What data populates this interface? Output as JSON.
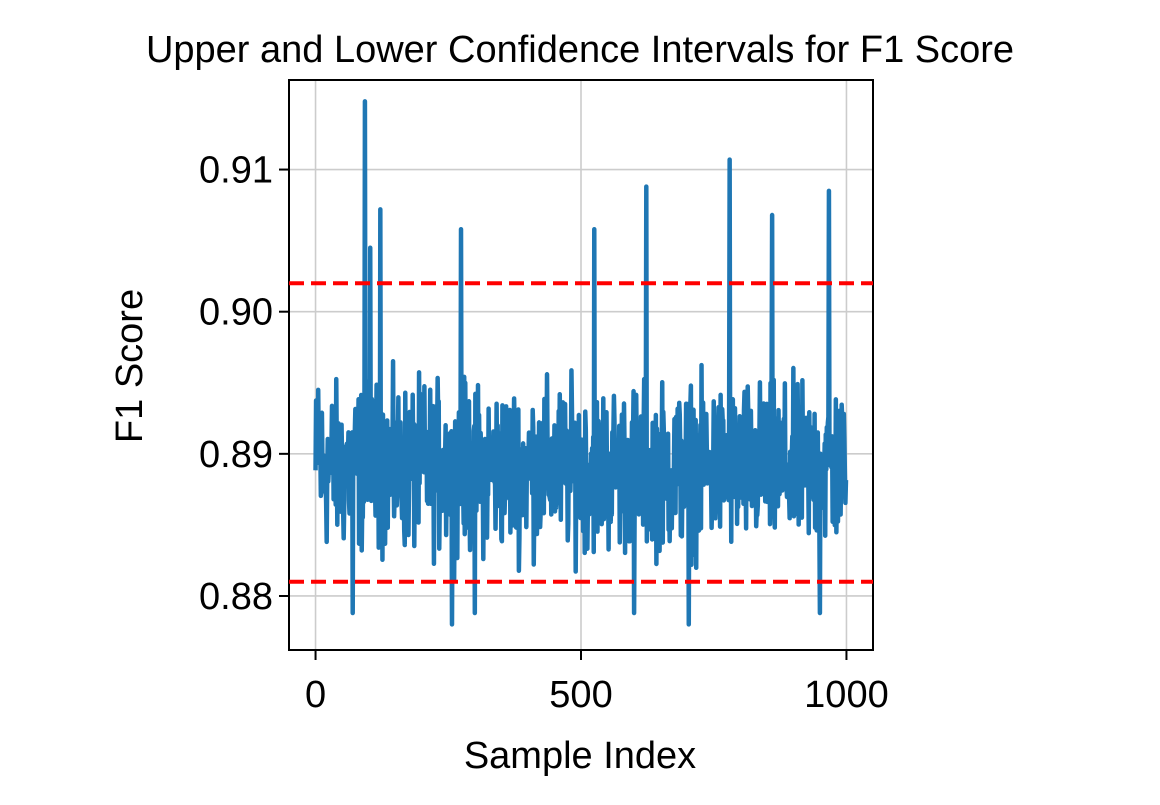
{
  "chart_data": {
    "type": "line",
    "title": "Upper and Lower Confidence Intervals for F1 Score",
    "xlabel": "Sample Index",
    "ylabel": "F1 Score",
    "xlim": [
      -50,
      1050
    ],
    "ylim": [
      0.8762,
      0.9163
    ],
    "xticks": [
      0,
      500,
      1000
    ],
    "xtick_labels": [
      "0",
      "500",
      "1000"
    ],
    "yticks": [
      0.88,
      0.89,
      0.9,
      0.91
    ],
    "ytick_labels": [
      "0.88",
      "0.89",
      "0.90",
      "0.91"
    ],
    "grid": true,
    "legend": "none",
    "series": [
      {
        "style": "solid",
        "color": "#1f77b4",
        "x_start": 0,
        "x_step": 1,
        "count": 1000,
        "base_value": 0.889,
        "spread": 0.006,
        "min_value": 0.878,
        "max_value": 0.915,
        "notable_points": [
          {
            "x": 0,
            "y": 0.889
          },
          {
            "x": 5,
            "y": 0.8945
          },
          {
            "x": 70,
            "y": 0.8788
          },
          {
            "x": 93,
            "y": 0.9148
          },
          {
            "x": 103,
            "y": 0.9045
          },
          {
            "x": 122,
            "y": 0.9072
          },
          {
            "x": 257,
            "y": 0.878
          },
          {
            "x": 274,
            "y": 0.9058
          },
          {
            "x": 300,
            "y": 0.8788
          },
          {
            "x": 525,
            "y": 0.9058
          },
          {
            "x": 600,
            "y": 0.8788
          },
          {
            "x": 623,
            "y": 0.9088
          },
          {
            "x": 703,
            "y": 0.878
          },
          {
            "x": 780,
            "y": 0.9107
          },
          {
            "x": 860,
            "y": 0.9068
          },
          {
            "x": 950,
            "y": 0.8788
          },
          {
            "x": 967,
            "y": 0.9085
          },
          {
            "x": 999,
            "y": 0.888
          }
        ]
      }
    ],
    "reference_lines": [
      {
        "orientation": "horizontal",
        "y": 0.902,
        "style": "dashed",
        "color": "#ff0000"
      },
      {
        "orientation": "horizontal",
        "y": 0.881,
        "style": "dashed",
        "color": "#ff0000"
      }
    ]
  }
}
